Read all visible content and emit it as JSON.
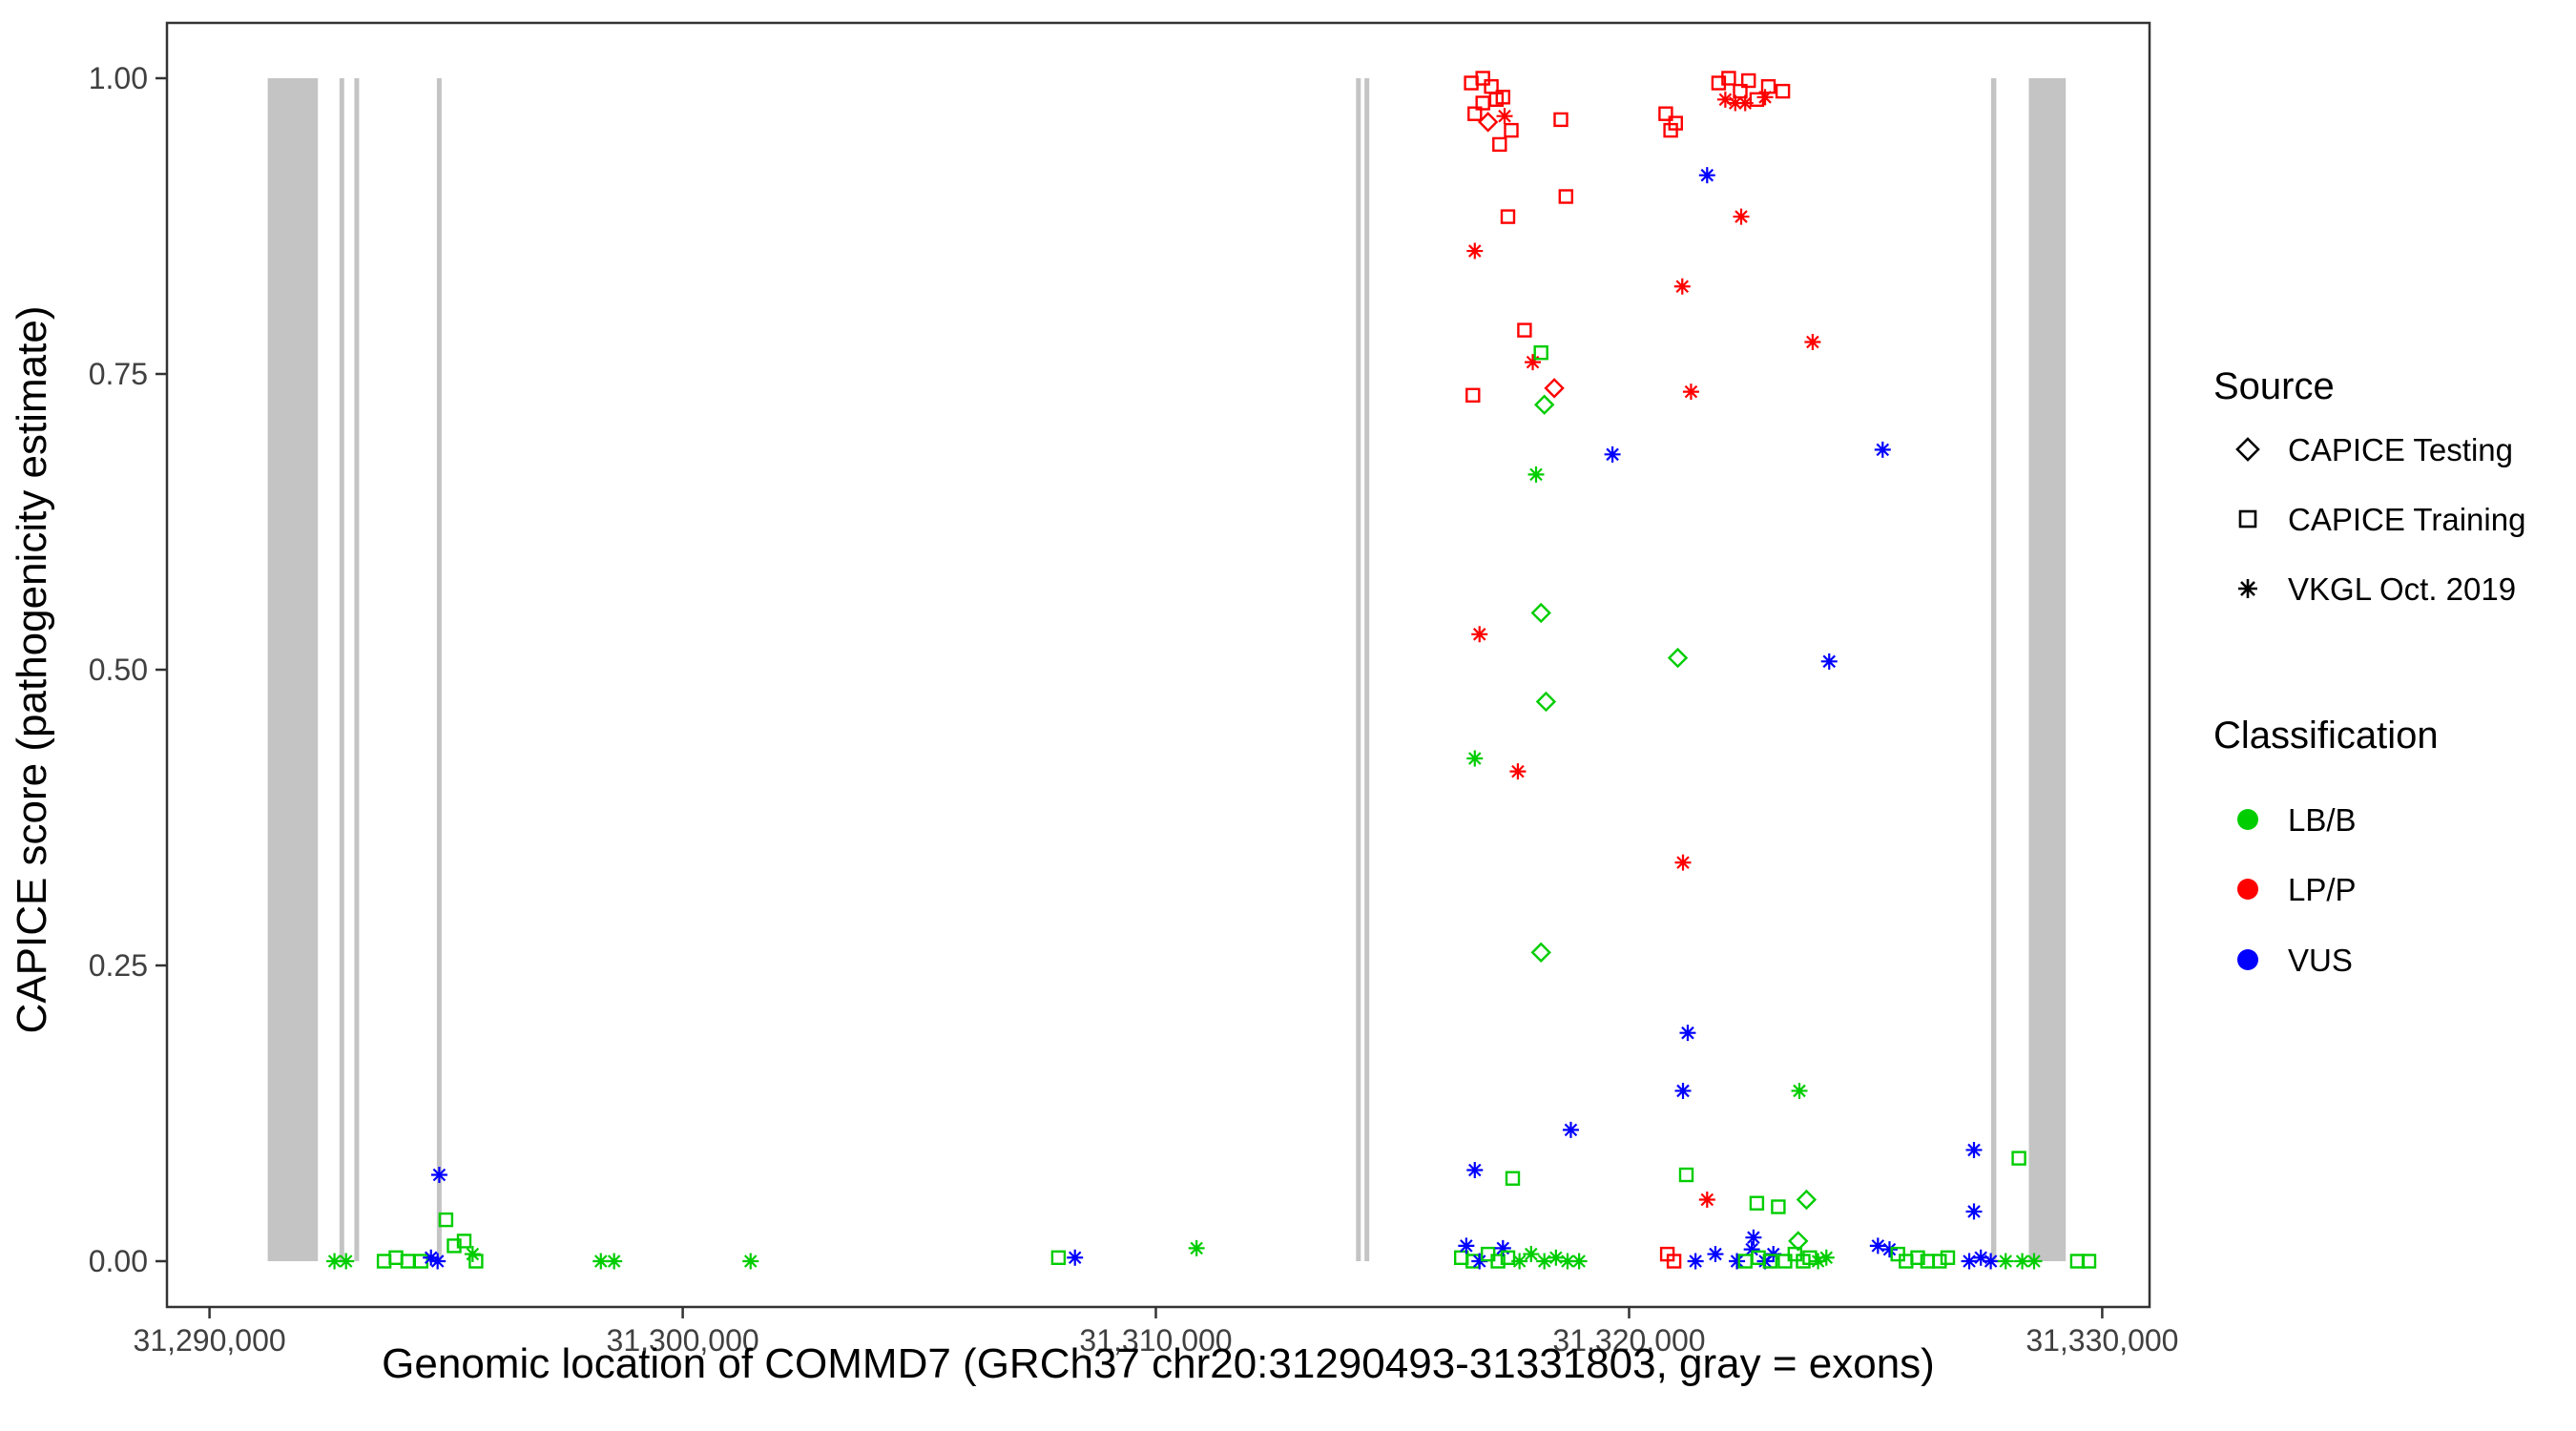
{
  "chart_data": {
    "type": "scatter",
    "title": "",
    "xlabel": "Genomic location of COMMD7 (GRCh37 chr20:31290493-31331803, gray = exons)",
    "ylabel": "CAPICE score (pathogenicity estimate)",
    "xlim": [
      31289100,
      31331000
    ],
    "ylim": [
      0,
      1
    ],
    "grid": false,
    "legend_position": "right",
    "x_ticks": [
      {
        "value": 31290000,
        "label": "31,290,000"
      },
      {
        "value": 31300000,
        "label": "31,300,000"
      },
      {
        "value": 31310000,
        "label": "31,310,000"
      },
      {
        "value": 31320000,
        "label": "31,320,000"
      },
      {
        "value": 31330000,
        "label": "31,330,000"
      }
    ],
    "y_ticks": [
      {
        "value": 0.0,
        "label": "0.00"
      },
      {
        "value": 0.25,
        "label": "0.25"
      },
      {
        "value": 0.5,
        "label": "0.50"
      },
      {
        "value": 0.75,
        "label": "0.75"
      },
      {
        "value": 1.0,
        "label": "1.00"
      }
    ],
    "exon_color": "#C4C4C4",
    "exons": [
      [
        31291230,
        31292290
      ],
      [
        31292745,
        31292845
      ],
      [
        31293060,
        31293160
      ],
      [
        31294805,
        31294905
      ],
      [
        31314230,
        31314330
      ],
      [
        31314410,
        31314510
      ],
      [
        31327650,
        31327760
      ],
      [
        31328450,
        31329230
      ]
    ],
    "sources": {
      "test": {
        "label": "CAPICE Testing",
        "shape": "diamond"
      },
      "train": {
        "label": "CAPICE Training",
        "shape": "square"
      },
      "vkgl": {
        "label": "VKGL Oct. 2019",
        "shape": "asterisk"
      }
    },
    "classes": {
      "lbb": {
        "label": "LB/B",
        "color": "#00CD00"
      },
      "lpp": {
        "label": "LP/P",
        "color": "#FF0000"
      },
      "vus": {
        "label": "VUS",
        "color": "#0000FF"
      }
    },
    "points": [
      [
        31292640,
        0.0,
        "vkgl",
        "lbb"
      ],
      [
        31292885,
        0.0,
        "vkgl",
        "lbb"
      ],
      [
        31293690,
        0.0,
        "train",
        "lbb"
      ],
      [
        31293940,
        0.003,
        "train",
        "lbb"
      ],
      [
        31294190,
        0.0,
        "train",
        "lbb"
      ],
      [
        31294470,
        0.0,
        "train",
        "lbb"
      ],
      [
        31294680,
        0.003,
        "vkgl",
        "vus"
      ],
      [
        31294820,
        0.0,
        "vkgl",
        "vus"
      ],
      [
        31294855,
        0.073,
        "vkgl",
        "vus"
      ],
      [
        31294995,
        0.035,
        "train",
        "lbb"
      ],
      [
        31295170,
        0.013,
        "train",
        "lbb"
      ],
      [
        31295380,
        0.017,
        "train",
        "lbb"
      ],
      [
        31295560,
        0.006,
        "vkgl",
        "lbb"
      ],
      [
        31295630,
        0.0,
        "train",
        "lbb"
      ],
      [
        31298270,
        0.0,
        "vkgl",
        "lbb"
      ],
      [
        31298550,
        0.0,
        "vkgl",
        "lbb"
      ],
      [
        31301435,
        0.0,
        "vkgl",
        "lbb"
      ],
      [
        31307940,
        0.003,
        "train",
        "lbb"
      ],
      [
        31308290,
        0.003,
        "vkgl",
        "vus"
      ],
      [
        31310860,
        0.011,
        "vkgl",
        "lbb"
      ],
      [
        31316665,
        0.996,
        "train",
        "lpp"
      ],
      [
        31316910,
        1.0,
        "train",
        "lpp"
      ],
      [
        31317090,
        0.993,
        "train",
        "lpp"
      ],
      [
        31317195,
        0.982,
        "train",
        "lpp"
      ],
      [
        31317335,
        0.984,
        "train",
        "lpp"
      ],
      [
        31316910,
        0.979,
        "train",
        "lpp"
      ],
      [
        31316740,
        0.97,
        "train",
        "lpp"
      ],
      [
        31317020,
        0.963,
        "test",
        "lpp"
      ],
      [
        31317370,
        0.968,
        "vkgl",
        "lpp"
      ],
      [
        31317510,
        0.956,
        "train",
        "lpp"
      ],
      [
        31317265,
        0.944,
        "train",
        "lpp"
      ],
      [
        31318560,
        0.965,
        "train",
        "lpp"
      ],
      [
        31318665,
        0.9,
        "train",
        "lpp"
      ],
      [
        31317440,
        0.883,
        "train",
        "lpp"
      ],
      [
        31316740,
        0.854,
        "vkgl",
        "lpp"
      ],
      [
        31317790,
        0.787,
        "train",
        "lpp"
      ],
      [
        31317965,
        0.76,
        "vkgl",
        "lpp"
      ],
      [
        31318140,
        0.768,
        "train",
        "lbb"
      ],
      [
        31316700,
        0.732,
        "train",
        "lpp"
      ],
      [
        31318420,
        0.738,
        "test",
        "lpp"
      ],
      [
        31318210,
        0.724,
        "test",
        "lbb"
      ],
      [
        31318035,
        0.665,
        "vkgl",
        "lbb"
      ],
      [
        31319650,
        0.682,
        "vkgl",
        "vus"
      ],
      [
        31316840,
        0.53,
        "vkgl",
        "lpp"
      ],
      [
        31318140,
        0.548,
        "test",
        "lbb"
      ],
      [
        31318245,
        0.473,
        "test",
        "lbb"
      ],
      [
        31316740,
        0.425,
        "vkgl",
        "lbb"
      ],
      [
        31317650,
        0.414,
        "vkgl",
        "lpp"
      ],
      [
        31318140,
        0.261,
        "test",
        "lbb"
      ],
      [
        31316740,
        0.077,
        "vkgl",
        "vus"
      ],
      [
        31317540,
        0.07,
        "train",
        "lbb"
      ],
      [
        31318770,
        0.111,
        "vkgl",
        "vus"
      ],
      [
        31316455,
        0.003,
        "train",
        "lbb"
      ],
      [
        31316560,
        0.013,
        "vkgl",
        "vus"
      ],
      [
        31316700,
        0.0,
        "train",
        "lbb"
      ],
      [
        31316840,
        0.0,
        "vkgl",
        "vus"
      ],
      [
        31317020,
        0.006,
        "train",
        "lbb"
      ],
      [
        31317230,
        0.0,
        "train",
        "lbb"
      ],
      [
        31317335,
        0.011,
        "vkgl",
        "vus"
      ],
      [
        31317440,
        0.003,
        "train",
        "lbb"
      ],
      [
        31317685,
        0.0,
        "vkgl",
        "lbb"
      ],
      [
        31317930,
        0.006,
        "vkgl",
        "lbb"
      ],
      [
        31318210,
        0.0,
        "vkgl",
        "lbb"
      ],
      [
        31318455,
        0.003,
        "vkgl",
        "lbb"
      ],
      [
        31318700,
        0.0,
        "vkgl",
        "lbb"
      ],
      [
        31318945,
        0.0,
        "vkgl",
        "lbb"
      ],
      [
        31320775,
        0.97,
        "train",
        "lpp"
      ],
      [
        31320880,
        0.956,
        "train",
        "lpp"
      ],
      [
        31320985,
        0.962,
        "train",
        "lpp"
      ],
      [
        31321650,
        0.918,
        "vkgl",
        "vus"
      ],
      [
        31321125,
        0.824,
        "vkgl",
        "lpp"
      ],
      [
        31321895,
        0.996,
        "train",
        "lpp"
      ],
      [
        31322105,
        1.0,
        "train",
        "lpp"
      ],
      [
        31322035,
        0.982,
        "vkgl",
        "lpp"
      ],
      [
        31322245,
        0.979,
        "vkgl",
        "lpp"
      ],
      [
        31322350,
        0.989,
        "train",
        "lpp"
      ],
      [
        31322525,
        0.998,
        "train",
        "lpp"
      ],
      [
        31322455,
        0.979,
        "vkgl",
        "lpp"
      ],
      [
        31322700,
        0.982,
        "train",
        "lpp"
      ],
      [
        31322875,
        0.984,
        "vkgl",
        "lpp"
      ],
      [
        31322945,
        0.993,
        "train",
        "lpp"
      ],
      [
        31323250,
        0.989,
        "train",
        "lpp"
      ],
      [
        31322370,
        0.883,
        "vkgl",
        "lpp"
      ],
      [
        31321310,
        0.735,
        "vkgl",
        "lpp"
      ],
      [
        31323880,
        0.777,
        "vkgl",
        "lpp"
      ],
      [
        31325360,
        0.686,
        "vkgl",
        "vus"
      ],
      [
        31324230,
        0.507,
        "vkgl",
        "vus"
      ],
      [
        31321030,
        0.51,
        "test",
        "lbb"
      ],
      [
        31321140,
        0.337,
        "vkgl",
        "lpp"
      ],
      [
        31321240,
        0.193,
        "vkgl",
        "vus"
      ],
      [
        31321140,
        0.144,
        "vkgl",
        "vus"
      ],
      [
        31323600,
        0.144,
        "vkgl",
        "lbb"
      ],
      [
        31321210,
        0.073,
        "train",
        "lbb"
      ],
      [
        31321650,
        0.052,
        "vkgl",
        "lpp"
      ],
      [
        31322700,
        0.049,
        "train",
        "lbb"
      ],
      [
        31323750,
        0.052,
        "test",
        "lbb"
      ],
      [
        31323155,
        0.046,
        "train",
        "lbb"
      ],
      [
        31320810,
        0.006,
        "train",
        "lpp"
      ],
      [
        31320950,
        0.0,
        "train",
        "lpp"
      ],
      [
        31321405,
        0.0,
        "vkgl",
        "vus"
      ],
      [
        31321825,
        0.006,
        "vkgl",
        "vus"
      ],
      [
        31322280,
        0.0,
        "vkgl",
        "vus"
      ],
      [
        31322595,
        0.01,
        "vkgl",
        "vus"
      ],
      [
        31322875,
        0.0,
        "vkgl",
        "vus"
      ],
      [
        31323050,
        0.006,
        "vkgl",
        "vus"
      ],
      [
        31322455,
        0.0,
        "train",
        "lbb"
      ],
      [
        31322735,
        0.003,
        "train",
        "lbb"
      ],
      [
        31322980,
        0.0,
        "train",
        "lbb"
      ],
      [
        31323295,
        0.0,
        "train",
        "lbb"
      ],
      [
        31323505,
        0.006,
        "train",
        "lbb"
      ],
      [
        31323680,
        0.0,
        "train",
        "lbb"
      ],
      [
        31323820,
        0.003,
        "train",
        "lbb"
      ],
      [
        31323575,
        0.017,
        "test",
        "lbb"
      ],
      [
        31323995,
        0.0,
        "vkgl",
        "lbb"
      ],
      [
        31324170,
        0.003,
        "vkgl",
        "lbb"
      ],
      [
        31322630,
        0.02,
        "vkgl",
        "vus"
      ],
      [
        31325260,
        0.013,
        "vkgl",
        "vus"
      ],
      [
        31325505,
        0.01,
        "vkgl",
        "vus"
      ],
      [
        31325680,
        0.006,
        "train",
        "lbb"
      ],
      [
        31325855,
        0.0,
        "train",
        "lbb"
      ],
      [
        31326100,
        0.003,
        "train",
        "lbb"
      ],
      [
        31326310,
        0.0,
        "train",
        "lbb"
      ],
      [
        31326560,
        0.0,
        "train",
        "lbb"
      ],
      [
        31326735,
        0.003,
        "train",
        "lbb"
      ],
      [
        31327290,
        0.094,
        "vkgl",
        "vus"
      ],
      [
        31327290,
        0.042,
        "vkgl",
        "vus"
      ],
      [
        31327190,
        0.0,
        "vkgl",
        "vus"
      ],
      [
        31327435,
        0.003,
        "vkgl",
        "vus"
      ],
      [
        31327645,
        0.0,
        "vkgl",
        "vus"
      ],
      [
        31327960,
        0.0,
        "vkgl",
        "lbb"
      ],
      [
        31328240,
        0.087,
        "train",
        "lbb"
      ],
      [
        31328310,
        0.0,
        "vkgl",
        "lbb"
      ],
      [
        31328560,
        0.0,
        "vkgl",
        "lbb"
      ],
      [
        31329475,
        0.0,
        "train",
        "lbb"
      ],
      [
        31329720,
        0.0,
        "train",
        "lbb"
      ]
    ]
  },
  "legend": {
    "source": {
      "title": "Source",
      "items": [
        {
          "label": "CAPICE Testing",
          "shape": "diamond"
        },
        {
          "label": "CAPICE Training",
          "shape": "square"
        },
        {
          "label": "VKGL Oct. 2019",
          "shape": "asterisk"
        }
      ]
    },
    "classification": {
      "title": "Classification",
      "items": [
        {
          "label": "LB/B",
          "color": "#00CD00"
        },
        {
          "label": "LP/P",
          "color": "#FF0000"
        },
        {
          "label": "VUS",
          "color": "#0000FF"
        }
      ]
    }
  }
}
